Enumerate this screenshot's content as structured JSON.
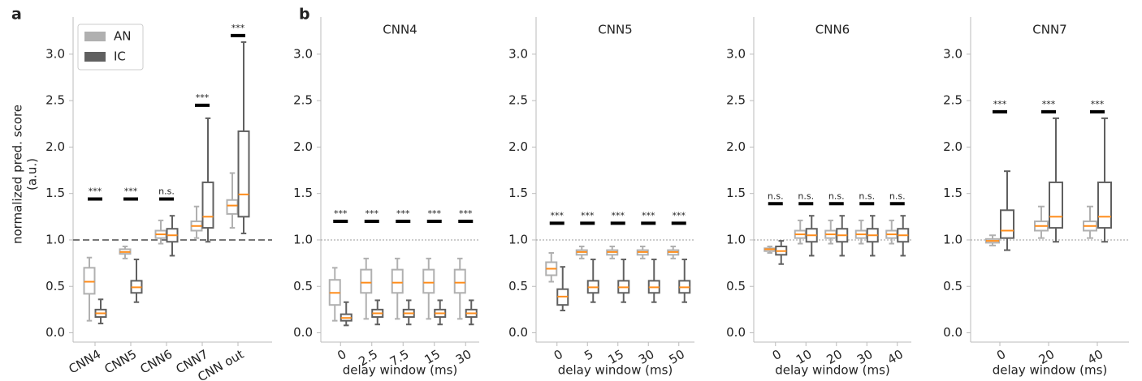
{
  "chart_data": [
    {
      "type": "box",
      "panel_label": "a",
      "ylabel": [
        "normalized pred. score",
        "(a.u.)"
      ],
      "categories": [
        "CNN4",
        "CNN5",
        "CNN6",
        "CNN7",
        "CNN out"
      ],
      "series": [
        {
          "name": "AN",
          "color": "#b0b0b0",
          "values": [
            [
              0.13,
              0.42,
              0.55,
              0.7,
              0.81
            ],
            [
              0.8,
              0.85,
              0.87,
              0.9,
              0.93
            ],
            [
              0.96,
              1.02,
              1.06,
              1.1,
              1.21
            ],
            [
              1.02,
              1.1,
              1.15,
              1.2,
              1.36
            ],
            [
              1.13,
              1.28,
              1.37,
              1.43,
              1.72
            ]
          ]
        },
        {
          "name": "IC",
          "color": "#606060",
          "values": [
            [
              0.1,
              0.17,
              0.21,
              0.25,
              0.36
            ],
            [
              0.33,
              0.43,
              0.49,
              0.56,
              0.79
            ],
            [
              0.83,
              0.98,
              1.05,
              1.12,
              1.26
            ],
            [
              0.98,
              1.13,
              1.25,
              1.62,
              2.31
            ],
            [
              1.07,
              1.25,
              1.49,
              2.17,
              3.13
            ]
          ]
        }
      ],
      "median_color": "#ff8c1a",
      "annotations": [
        {
          "text": "***",
          "y": 1.44
        },
        {
          "text": "***",
          "y": 1.44
        },
        {
          "text": "n.s.",
          "y": 1.44
        },
        {
          "text": "***",
          "y": 2.45
        },
        {
          "text": "***",
          "y": 3.2
        }
      ],
      "reference_line": 1,
      "reference_style": "dashed",
      "ylim": [
        -0.1,
        3.4
      ],
      "yticks": [
        {
          "value": 0,
          "label": "0.0"
        },
        {
          "value": 0.5,
          "label": "0.5"
        },
        {
          "value": 1,
          "label": "1.0"
        },
        {
          "value": 1.5,
          "label": "1.5"
        },
        {
          "value": 2,
          "label": "2.0"
        },
        {
          "value": 2.5,
          "label": "2.5"
        },
        {
          "value": 3,
          "label": "3.0"
        }
      ],
      "legend": "upper left"
    },
    {
      "type": "box",
      "panel_label": "b",
      "title": "CNN4",
      "xlabel": "delay window (ms)",
      "categories": [
        "0",
        "2.5",
        "7.5",
        "15",
        "30"
      ],
      "series": [
        {
          "color": "#b0b0b0",
          "values": [
            [
              0.13,
              0.3,
              0.43,
              0.57,
              0.7
            ],
            [
              0.15,
              0.43,
              0.54,
              0.68,
              0.8
            ],
            [
              0.15,
              0.43,
              0.54,
              0.68,
              0.8
            ],
            [
              0.15,
              0.43,
              0.54,
              0.68,
              0.8
            ],
            [
              0.15,
              0.43,
              0.54,
              0.68,
              0.8
            ]
          ]
        },
        {
          "color": "#606060",
          "values": [
            [
              0.08,
              0.13,
              0.16,
              0.2,
              0.33
            ],
            [
              0.09,
              0.17,
              0.21,
              0.25,
              0.35
            ],
            [
              0.09,
              0.17,
              0.21,
              0.25,
              0.35
            ],
            [
              0.09,
              0.17,
              0.21,
              0.25,
              0.35
            ],
            [
              0.09,
              0.17,
              0.21,
              0.25,
              0.35
            ]
          ]
        }
      ],
      "median_color": "#ff8c1a",
      "annotations": [
        {
          "text": "***",
          "y": 1.2
        },
        {
          "text": "***",
          "y": 1.2
        },
        {
          "text": "***",
          "y": 1.2
        },
        {
          "text": "***",
          "y": 1.2
        },
        {
          "text": "***",
          "y": 1.2
        }
      ],
      "reference_line": 1,
      "reference_style": "dotted",
      "ylim": [
        -0.1,
        3.4
      ],
      "yticks": [
        {
          "value": 0,
          "label": "0.0"
        },
        {
          "value": 0.5,
          "label": "0.5"
        },
        {
          "value": 1,
          "label": "1.0"
        },
        {
          "value": 1.5,
          "label": "1.5"
        },
        {
          "value": 2,
          "label": "2.0"
        },
        {
          "value": 2.5,
          "label": "2.5"
        },
        {
          "value": 3,
          "label": "3.0"
        }
      ]
    },
    {
      "type": "box",
      "title": "CNN5",
      "xlabel": "delay window (ms)",
      "categories": [
        "0",
        "5",
        "15",
        "30",
        "50"
      ],
      "series": [
        {
          "color": "#b0b0b0",
          "values": [
            [
              0.55,
              0.62,
              0.69,
              0.76,
              0.86
            ],
            [
              0.8,
              0.84,
              0.87,
              0.89,
              0.93
            ],
            [
              0.8,
              0.84,
              0.87,
              0.89,
              0.93
            ],
            [
              0.8,
              0.84,
              0.87,
              0.89,
              0.93
            ],
            [
              0.8,
              0.84,
              0.87,
              0.89,
              0.93
            ]
          ]
        },
        {
          "color": "#606060",
          "values": [
            [
              0.24,
              0.3,
              0.39,
              0.47,
              0.71
            ],
            [
              0.33,
              0.43,
              0.49,
              0.56,
              0.79
            ],
            [
              0.33,
              0.43,
              0.49,
              0.56,
              0.79
            ],
            [
              0.33,
              0.43,
              0.49,
              0.56,
              0.79
            ],
            [
              0.33,
              0.43,
              0.49,
              0.56,
              0.79
            ]
          ]
        }
      ],
      "median_color": "#ff8c1a",
      "annotations": [
        {
          "text": "***",
          "y": 1.18
        },
        {
          "text": "***",
          "y": 1.18
        },
        {
          "text": "***",
          "y": 1.18
        },
        {
          "text": "***",
          "y": 1.18
        },
        {
          "text": "***",
          "y": 1.18
        }
      ],
      "reference_line": 1,
      "reference_style": "dotted",
      "ylim": [
        -0.1,
        3.4
      ],
      "yticks": [
        {
          "value": 0,
          "label": "0.0"
        },
        {
          "value": 0.5,
          "label": "0.5"
        },
        {
          "value": 1,
          "label": "1.0"
        },
        {
          "value": 1.5,
          "label": "1.5"
        },
        {
          "value": 2,
          "label": "2.0"
        },
        {
          "value": 2.5,
          "label": "2.5"
        },
        {
          "value": 3,
          "label": "3.0"
        }
      ]
    },
    {
      "type": "box",
      "title": "CNN6",
      "xlabel": "delay window (ms)",
      "categories": [
        "0",
        "10",
        "20",
        "30",
        "40"
      ],
      "series": [
        {
          "color": "#b0b0b0",
          "values": [
            [
              0.86,
              0.88,
              0.9,
              0.91,
              0.93
            ],
            [
              0.96,
              1.02,
              1.06,
              1.1,
              1.21
            ],
            [
              0.96,
              1.02,
              1.06,
              1.1,
              1.21
            ],
            [
              0.96,
              1.02,
              1.06,
              1.1,
              1.21
            ],
            [
              0.96,
              1.02,
              1.06,
              1.1,
              1.21
            ]
          ]
        },
        {
          "color": "#606060",
          "values": [
            [
              0.74,
              0.84,
              0.88,
              0.93,
              0.99
            ],
            [
              0.83,
              0.98,
              1.05,
              1.12,
              1.26
            ],
            [
              0.83,
              0.98,
              1.05,
              1.12,
              1.26
            ],
            [
              0.83,
              0.98,
              1.05,
              1.12,
              1.26
            ],
            [
              0.83,
              0.98,
              1.05,
              1.12,
              1.26
            ]
          ]
        }
      ],
      "median_color": "#ff8c1a",
      "annotations": [
        {
          "text": "n.s.",
          "y": 1.39
        },
        {
          "text": "n.s.",
          "y": 1.39
        },
        {
          "text": "n.s.",
          "y": 1.39
        },
        {
          "text": "n.s.",
          "y": 1.39
        },
        {
          "text": "n.s.",
          "y": 1.39
        }
      ],
      "reference_line": 1,
      "reference_style": "dotted",
      "ylim": [
        -0.1,
        3.4
      ],
      "yticks": [
        {
          "value": 0,
          "label": "0.0"
        },
        {
          "value": 0.5,
          "label": "0.5"
        },
        {
          "value": 1,
          "label": "1.0"
        },
        {
          "value": 1.5,
          "label": "1.5"
        },
        {
          "value": 2,
          "label": "2.0"
        },
        {
          "value": 2.5,
          "label": "2.5"
        },
        {
          "value": 3,
          "label": "3.0"
        }
      ]
    },
    {
      "type": "box",
      "title": "CNN7",
      "xlabel": "delay window (ms)",
      "categories": [
        "0",
        "20",
        "40"
      ],
      "series": [
        {
          "color": "#b0b0b0",
          "values": [
            [
              0.94,
              0.97,
              0.99,
              1.01,
              1.05
            ],
            [
              1.02,
              1.1,
              1.15,
              1.2,
              1.36
            ],
            [
              1.02,
              1.1,
              1.15,
              1.2,
              1.36
            ]
          ]
        },
        {
          "color": "#606060",
          "values": [
            [
              0.89,
              1.02,
              1.1,
              1.32,
              1.74
            ],
            [
              0.98,
              1.13,
              1.25,
              1.62,
              2.31
            ],
            [
              0.98,
              1.13,
              1.25,
              1.62,
              2.31
            ]
          ]
        }
      ],
      "median_color": "#ff8c1a",
      "annotations": [
        {
          "text": "***",
          "y": 2.38
        },
        {
          "text": "***",
          "y": 2.38
        },
        {
          "text": "***",
          "y": 2.38
        }
      ],
      "reference_line": 1,
      "reference_style": "dotted",
      "ylim": [
        -0.1,
        3.4
      ],
      "yticks": [
        {
          "value": 0,
          "label": "0.0"
        },
        {
          "value": 0.5,
          "label": "0.5"
        },
        {
          "value": 1,
          "label": "1.0"
        },
        {
          "value": 1.5,
          "label": "1.5"
        },
        {
          "value": 2,
          "label": "2.0"
        },
        {
          "value": 2.5,
          "label": "2.5"
        },
        {
          "value": 3,
          "label": "3.0"
        }
      ]
    }
  ]
}
